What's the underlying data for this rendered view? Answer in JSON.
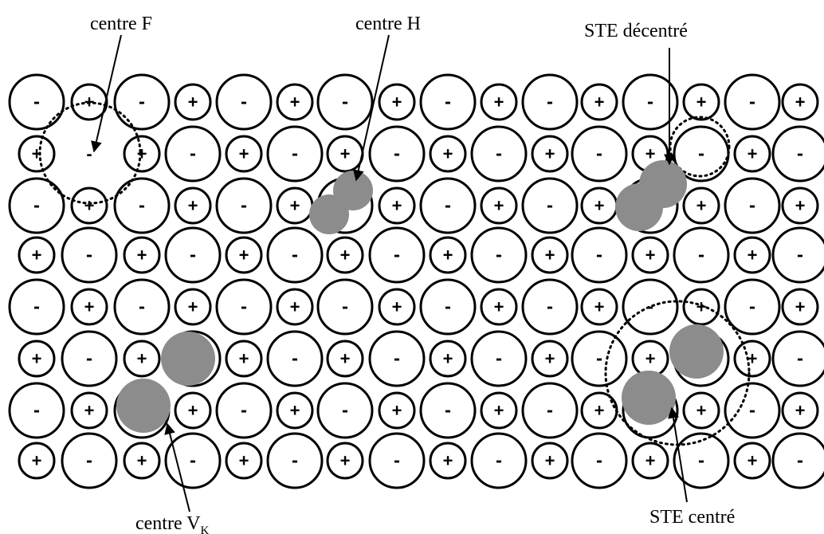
{
  "signs": {
    "anion": "-",
    "cation": "+"
  },
  "labels": {
    "centre_f": "centre F",
    "centre_h": "centre H",
    "ste_decentre": "STE décentré",
    "ste_centre": "STE centré",
    "centre_vk_main": "centre V",
    "centre_vk_sub": "K"
  },
  "colors": {
    "ion_outline": "#000000",
    "ion_fill": "#ffffff",
    "hole_shade": "#8c8c8c",
    "text": "#000000"
  }
}
